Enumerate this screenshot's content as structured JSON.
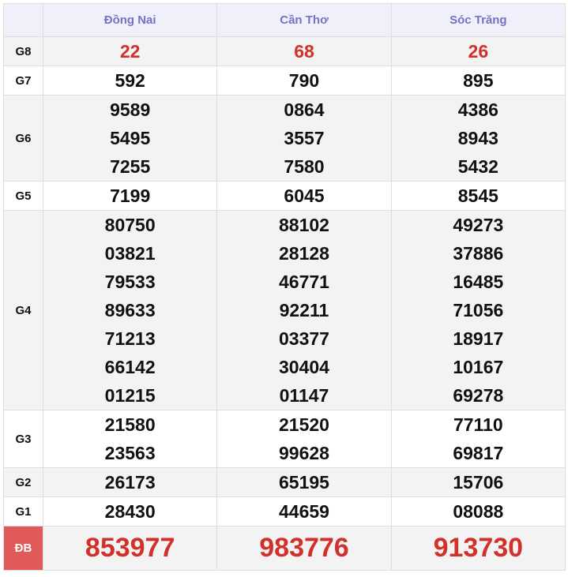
{
  "provinces": [
    "Đồng Nai",
    "Cần Thơ",
    "Sóc Trăng"
  ],
  "colors": {
    "header_text": "#7a70c2",
    "highlight": "#d2302a",
    "db_label_bg": "#e05a5a"
  },
  "rows": [
    {
      "label": "G8",
      "values": [
        [
          "22"
        ],
        [
          "68"
        ],
        [
          "26"
        ]
      ]
    },
    {
      "label": "G7",
      "values": [
        [
          "592"
        ],
        [
          "790"
        ],
        [
          "895"
        ]
      ]
    },
    {
      "label": "G6",
      "values": [
        [
          "9589",
          "5495",
          "7255"
        ],
        [
          "0864",
          "3557",
          "7580"
        ],
        [
          "4386",
          "8943",
          "5432"
        ]
      ]
    },
    {
      "label": "G5",
      "values": [
        [
          "7199"
        ],
        [
          "6045"
        ],
        [
          "8545"
        ]
      ]
    },
    {
      "label": "G4",
      "values": [
        [
          "80750",
          "03821",
          "79533",
          "89633",
          "71213",
          "66142",
          "01215"
        ],
        [
          "88102",
          "28128",
          "46771",
          "92211",
          "03377",
          "30404",
          "01147"
        ],
        [
          "49273",
          "37886",
          "16485",
          "71056",
          "18917",
          "10167",
          "69278"
        ]
      ]
    },
    {
      "label": "G3",
      "values": [
        [
          "21580",
          "23563"
        ],
        [
          "21520",
          "99628"
        ],
        [
          "77110",
          "69817"
        ]
      ]
    },
    {
      "label": "G2",
      "values": [
        [
          "26173"
        ],
        [
          "65195"
        ],
        [
          "15706"
        ]
      ]
    },
    {
      "label": "G1",
      "values": [
        [
          "28430"
        ],
        [
          "44659"
        ],
        [
          "08088"
        ]
      ]
    },
    {
      "label": "ĐB",
      "values": [
        [
          "853977"
        ],
        [
          "983776"
        ],
        [
          "913730"
        ]
      ]
    }
  ]
}
